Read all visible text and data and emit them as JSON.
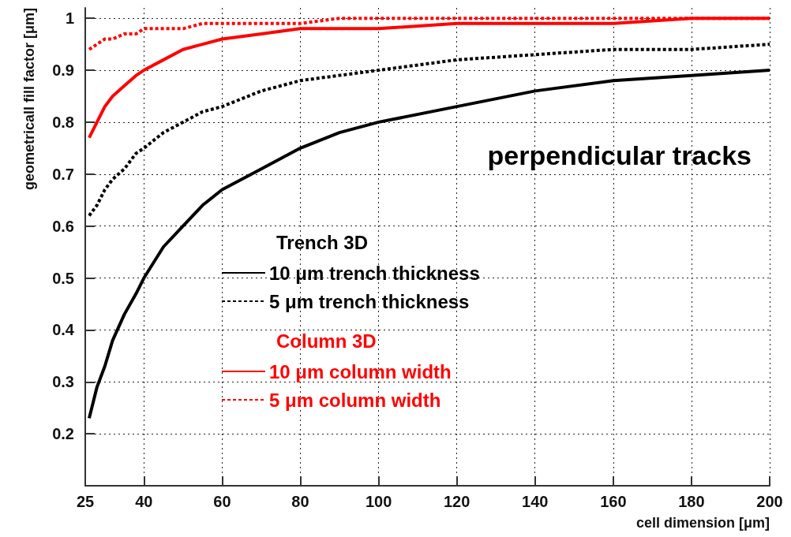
{
  "chart_data": {
    "type": "line",
    "xlabel": "cell dimension [μm]",
    "ylabel": "geometricall fill factor [μm]",
    "annotations": [
      "perpendicular tracks",
      "Trench 3D",
      "Column 3D"
    ],
    "x": [
      26,
      28,
      30,
      32,
      35,
      38,
      40,
      45,
      50,
      55,
      60,
      70,
      80,
      90,
      100,
      120,
      140,
      160,
      180,
      200
    ],
    "series": [
      {
        "name": "10 μm trench thickness",
        "color": "#000000",
        "line_style": "solid",
        "values": [
          0.23,
          0.29,
          0.33,
          0.38,
          0.43,
          0.47,
          0.5,
          0.56,
          0.6,
          0.64,
          0.67,
          0.71,
          0.75,
          0.78,
          0.8,
          0.83,
          0.86,
          0.88,
          0.89,
          0.9
        ]
      },
      {
        "name": "5 μm trench thickness",
        "color": "#000000",
        "line_style": "dotted",
        "values": [
          0.62,
          0.64,
          0.67,
          0.69,
          0.71,
          0.74,
          0.75,
          0.78,
          0.8,
          0.82,
          0.83,
          0.86,
          0.88,
          0.89,
          0.9,
          0.92,
          0.93,
          0.94,
          0.94,
          0.95
        ]
      },
      {
        "name": "10 μm column width",
        "color": "#ff0000",
        "line_style": "solid",
        "values": [
          0.77,
          0.8,
          0.83,
          0.85,
          0.87,
          0.89,
          0.9,
          0.92,
          0.94,
          0.95,
          0.96,
          0.97,
          0.98,
          0.98,
          0.98,
          0.99,
          0.99,
          0.99,
          1.0,
          1.0
        ]
      },
      {
        "name": "5 μm column width",
        "color": "#ff0000",
        "line_style": "dotted",
        "values": [
          0.94,
          0.95,
          0.96,
          0.96,
          0.97,
          0.97,
          0.98,
          0.98,
          0.98,
          0.99,
          0.99,
          0.99,
          0.99,
          1.0,
          1.0,
          1.0,
          1.0,
          1.0,
          1.0,
          1.0
        ]
      }
    ],
    "xlim": [
      25,
      200
    ],
    "xticks": [
      25,
      40,
      60,
      80,
      100,
      120,
      140,
      160,
      180,
      200
    ],
    "ylim": [
      0.1,
      1.02
    ],
    "yticks": [
      0.2,
      0.3,
      0.4,
      0.5,
      0.6,
      0.7,
      0.8,
      0.9,
      1
    ],
    "grid": true,
    "legend": "bottom left",
    "marker": "none"
  }
}
